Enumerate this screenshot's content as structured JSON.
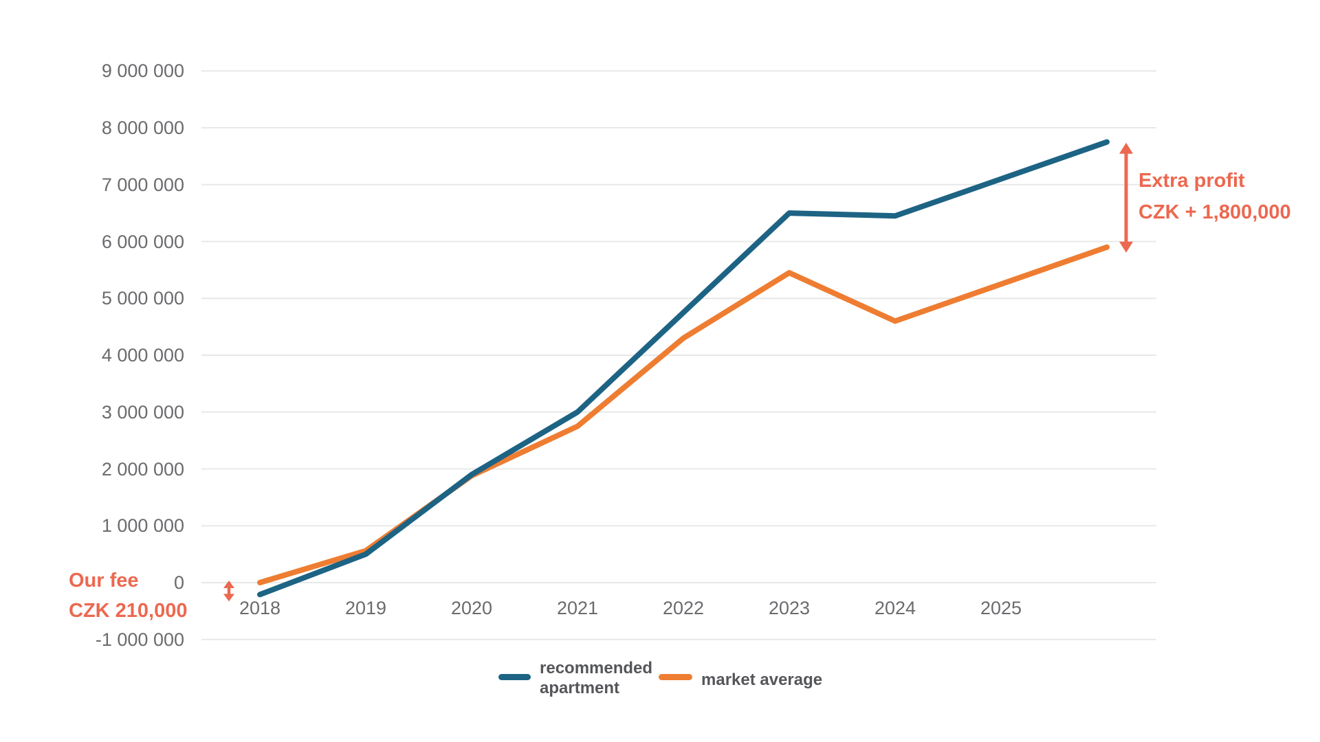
{
  "chart_data": {
    "type": "line",
    "title": "",
    "x_labels": [
      "2018",
      "2019",
      "2020",
      "2021",
      "2022",
      "2023",
      "2024",
      "2025"
    ],
    "x_note": "both lines extend one unlabeled step beyond 2025",
    "series": [
      {
        "name": "recommended apartment",
        "color_key": "recommended",
        "values": [
          -210000,
          500000,
          1900000,
          3000000,
          4750000,
          6500000,
          6450000,
          7100000,
          7750000
        ]
      },
      {
        "name": "market average",
        "color_key": "market",
        "values": [
          0,
          560000,
          1880000,
          2750000,
          4300000,
          5450000,
          4600000,
          5250000,
          5900000
        ]
      }
    ],
    "y_axis": {
      "min": -1000000,
      "max": 9000000,
      "step": 1000000,
      "tick_labels": [
        "9 000 000",
        "8 000 000",
        "7 000 000",
        "6 000 000",
        "5 000 000",
        "4 000 000",
        "3 000 000",
        "2 000 000",
        "1 000 000",
        "0",
        "-1 000 000"
      ]
    },
    "grid": "horizontal",
    "legend_position": "bottom-center"
  },
  "annotations": {
    "our_fee": {
      "line1": "Our fee",
      "line2": "CZK 210,000"
    },
    "extra_profit": {
      "line1": "Extra profit",
      "line2": "CZK + 1,800,000"
    }
  },
  "colors": {
    "recommended": "#1d6384",
    "market": "#ee7d32",
    "accent": "#ec6850",
    "axis_text": "#6a6b6e",
    "legend_text": "#55565a",
    "gridline": "#e7e8e8"
  }
}
